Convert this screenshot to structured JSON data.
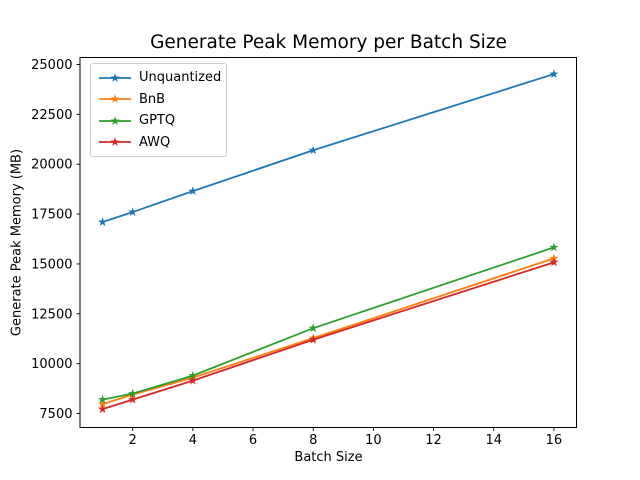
{
  "chart_data": {
    "type": "line",
    "title": "Generate Peak Memory per Batch Size",
    "xlabel": "Batch Size",
    "ylabel": "Generate Peak Memory (MB)",
    "x": [
      1,
      2,
      4,
      8,
      16
    ],
    "series": [
      {
        "name": "Unquantized",
        "color": "#1f77b4",
        "values": [
          17100,
          17600,
          18650,
          20700,
          24520
        ]
      },
      {
        "name": "BnB",
        "color": "#ff7f0e",
        "values": [
          7970,
          8450,
          9300,
          11280,
          15280
        ]
      },
      {
        "name": "GPTQ",
        "color": "#2ca02c",
        "values": [
          8200,
          8500,
          9400,
          11780,
          15830
        ]
      },
      {
        "name": "AWQ",
        "color": "#d62728",
        "values": [
          7720,
          8200,
          9150,
          11200,
          15080
        ]
      }
    ],
    "marker": "star",
    "xticks": [
      2,
      4,
      6,
      8,
      10,
      12,
      14,
      16
    ],
    "yticks": [
      7500,
      10000,
      12500,
      15000,
      17500,
      20000,
      22500,
      25000
    ],
    "xlim": [
      0.25,
      16.75
    ],
    "ylim": [
      6800,
      25350
    ],
    "grid": false,
    "legend_position": "upper-left",
    "background": "#ffffff",
    "axis_color": "#000000"
  }
}
